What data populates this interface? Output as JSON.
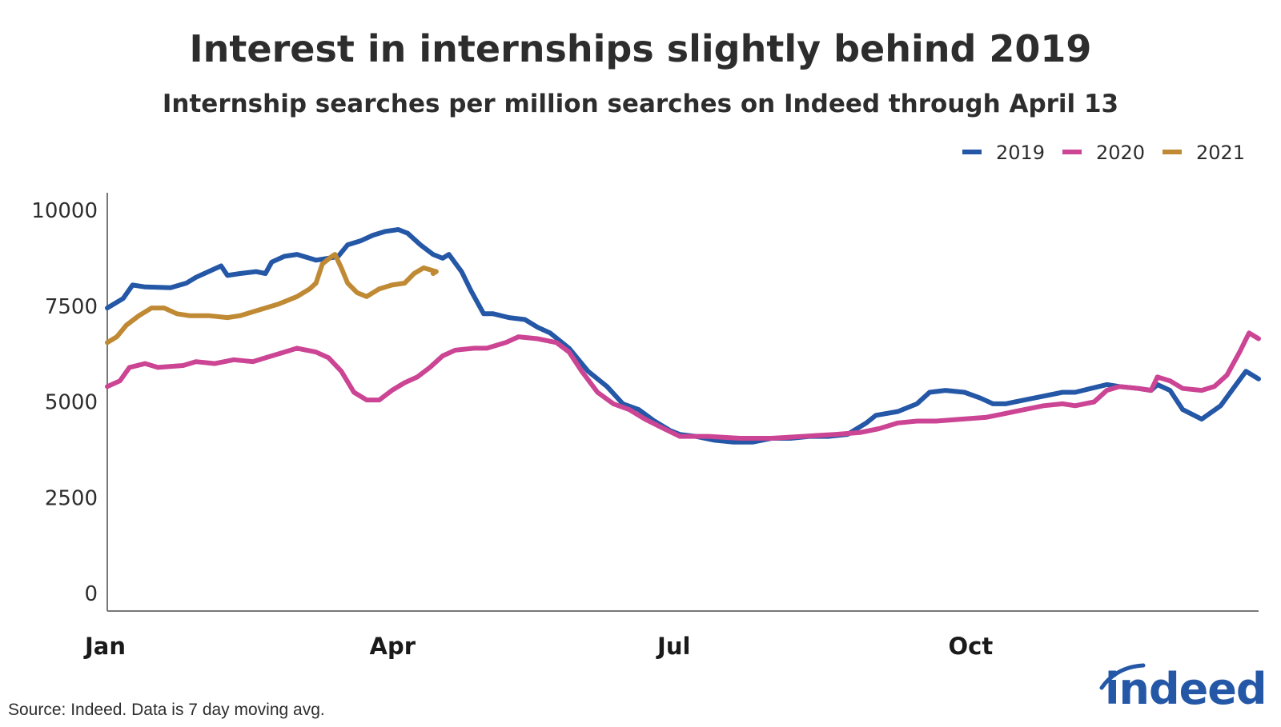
{
  "chart_data": {
    "type": "line",
    "title": "Interest in internships slightly behind 2019",
    "subtitle": "Internship searches per million searches on Indeed through April 13",
    "xlabel": "",
    "ylabel": "",
    "ylim": [
      0,
      10000
    ],
    "yticks": [
      "0",
      "2500",
      "5000",
      "7500",
      "10000"
    ],
    "xticks": [
      {
        "label": "Jan",
        "day": 0
      },
      {
        "label": "Apr",
        "day": 90
      },
      {
        "label": "Jul",
        "day": 181
      },
      {
        "label": "Oct",
        "day": 273
      }
    ],
    "x_domain_days": [
      0,
      364
    ],
    "legend_position": "top-right",
    "series": [
      {
        "name": "2019",
        "color": "#2557a7",
        "points": [
          [
            0,
            7450
          ],
          [
            5,
            7700
          ],
          [
            8,
            8050
          ],
          [
            12,
            8000
          ],
          [
            20,
            7980
          ],
          [
            25,
            8100
          ],
          [
            28,
            8250
          ],
          [
            32,
            8400
          ],
          [
            36,
            8550
          ],
          [
            38,
            8300
          ],
          [
            42,
            8350
          ],
          [
            47,
            8400
          ],
          [
            50,
            8350
          ],
          [
            52,
            8650
          ],
          [
            56,
            8800
          ],
          [
            60,
            8850
          ],
          [
            66,
            8700
          ],
          [
            70,
            8750
          ],
          [
            73,
            8800
          ],
          [
            76,
            9100
          ],
          [
            80,
            9200
          ],
          [
            84,
            9350
          ],
          [
            88,
            9450
          ],
          [
            92,
            9500
          ],
          [
            95,
            9400
          ],
          [
            99,
            9100
          ],
          [
            103,
            8850
          ],
          [
            106,
            8750
          ],
          [
            108,
            8850
          ],
          [
            112,
            8400
          ],
          [
            115,
            7900
          ],
          [
            119,
            7300
          ],
          [
            122,
            7300
          ],
          [
            127,
            7200
          ],
          [
            132,
            7150
          ],
          [
            136,
            6950
          ],
          [
            140,
            6800
          ],
          [
            146,
            6400
          ],
          [
            152,
            5800
          ],
          [
            158,
            5400
          ],
          [
            163,
            4950
          ],
          [
            168,
            4800
          ],
          [
            173,
            4500
          ],
          [
            178,
            4250
          ],
          [
            181,
            4150
          ],
          [
            186,
            4100
          ],
          [
            192,
            4000
          ],
          [
            198,
            3950
          ],
          [
            204,
            3950
          ],
          [
            210,
            4050
          ],
          [
            216,
            4050
          ],
          [
            222,
            4100
          ],
          [
            228,
            4100
          ],
          [
            234,
            4150
          ],
          [
            240,
            4450
          ],
          [
            243,
            4650
          ],
          [
            250,
            4750
          ],
          [
            256,
            4950
          ],
          [
            260,
            5250
          ],
          [
            265,
            5300
          ],
          [
            271,
            5250
          ],
          [
            276,
            5100
          ],
          [
            280,
            4950
          ],
          [
            284,
            4950
          ],
          [
            290,
            5050
          ],
          [
            296,
            5150
          ],
          [
            302,
            5250
          ],
          [
            306,
            5250
          ],
          [
            311,
            5350
          ],
          [
            316,
            5450
          ],
          [
            320,
            5400
          ],
          [
            326,
            5350
          ],
          [
            330,
            5300
          ],
          [
            332,
            5450
          ],
          [
            336,
            5300
          ],
          [
            340,
            4800
          ],
          [
            346,
            4550
          ],
          [
            352,
            4900
          ],
          [
            356,
            5350
          ],
          [
            360,
            5800
          ],
          [
            364,
            5600
          ]
        ]
      },
      {
        "name": "2020",
        "color": "#cc4594",
        "points": [
          [
            0,
            5400
          ],
          [
            4,
            5550
          ],
          [
            7,
            5900
          ],
          [
            12,
            6000
          ],
          [
            16,
            5900
          ],
          [
            24,
            5950
          ],
          [
            28,
            6050
          ],
          [
            34,
            6000
          ],
          [
            40,
            6100
          ],
          [
            46,
            6050
          ],
          [
            50,
            6150
          ],
          [
            56,
            6300
          ],
          [
            60,
            6400
          ],
          [
            66,
            6300
          ],
          [
            70,
            6150
          ],
          [
            74,
            5800
          ],
          [
            78,
            5250
          ],
          [
            82,
            5050
          ],
          [
            86,
            5050
          ],
          [
            90,
            5300
          ],
          [
            94,
            5500
          ],
          [
            98,
            5650
          ],
          [
            102,
            5900
          ],
          [
            106,
            6200
          ],
          [
            110,
            6350
          ],
          [
            116,
            6400
          ],
          [
            120,
            6400
          ],
          [
            126,
            6550
          ],
          [
            130,
            6700
          ],
          [
            136,
            6650
          ],
          [
            142,
            6550
          ],
          [
            146,
            6300
          ],
          [
            150,
            5800
          ],
          [
            155,
            5250
          ],
          [
            160,
            4950
          ],
          [
            165,
            4800
          ],
          [
            170,
            4550
          ],
          [
            176,
            4300
          ],
          [
            181,
            4100
          ],
          [
            190,
            4100
          ],
          [
            200,
            4050
          ],
          [
            210,
            4050
          ],
          [
            220,
            4100
          ],
          [
            230,
            4150
          ],
          [
            238,
            4200
          ],
          [
            244,
            4300
          ],
          [
            250,
            4450
          ],
          [
            256,
            4500
          ],
          [
            262,
            4500
          ],
          [
            270,
            4550
          ],
          [
            278,
            4600
          ],
          [
            284,
            4700
          ],
          [
            290,
            4800
          ],
          [
            296,
            4900
          ],
          [
            302,
            4950
          ],
          [
            306,
            4900
          ],
          [
            312,
            5000
          ],
          [
            316,
            5300
          ],
          [
            320,
            5400
          ],
          [
            326,
            5350
          ],
          [
            330,
            5300
          ],
          [
            332,
            5650
          ],
          [
            336,
            5550
          ],
          [
            340,
            5350
          ],
          [
            346,
            5300
          ],
          [
            350,
            5400
          ],
          [
            354,
            5700
          ],
          [
            358,
            6300
          ],
          [
            361,
            6800
          ],
          [
            364,
            6650
          ]
        ]
      },
      {
        "name": "2021",
        "color": "#c08a35",
        "points": [
          [
            0,
            6550
          ],
          [
            3,
            6700
          ],
          [
            6,
            7000
          ],
          [
            10,
            7250
          ],
          [
            14,
            7450
          ],
          [
            18,
            7450
          ],
          [
            22,
            7300
          ],
          [
            26,
            7250
          ],
          [
            32,
            7250
          ],
          [
            38,
            7200
          ],
          [
            42,
            7250
          ],
          [
            48,
            7400
          ],
          [
            54,
            7550
          ],
          [
            60,
            7750
          ],
          [
            64,
            7950
          ],
          [
            66,
            8100
          ],
          [
            68,
            8600
          ],
          [
            71,
            8800
          ],
          [
            72,
            8850
          ],
          [
            74,
            8500
          ],
          [
            76,
            8100
          ],
          [
            79,
            7850
          ],
          [
            82,
            7750
          ],
          [
            86,
            7950
          ],
          [
            90,
            8050
          ],
          [
            94,
            8100
          ],
          [
            97,
            8350
          ],
          [
            100,
            8500
          ],
          [
            104,
            8400
          ],
          [
            103,
            8350
          ]
        ]
      }
    ]
  },
  "source_note": "Source: Indeed. Data is 7 day moving avg.",
  "brand": {
    "wordmark": "indeed",
    "color": "#2557a7"
  }
}
